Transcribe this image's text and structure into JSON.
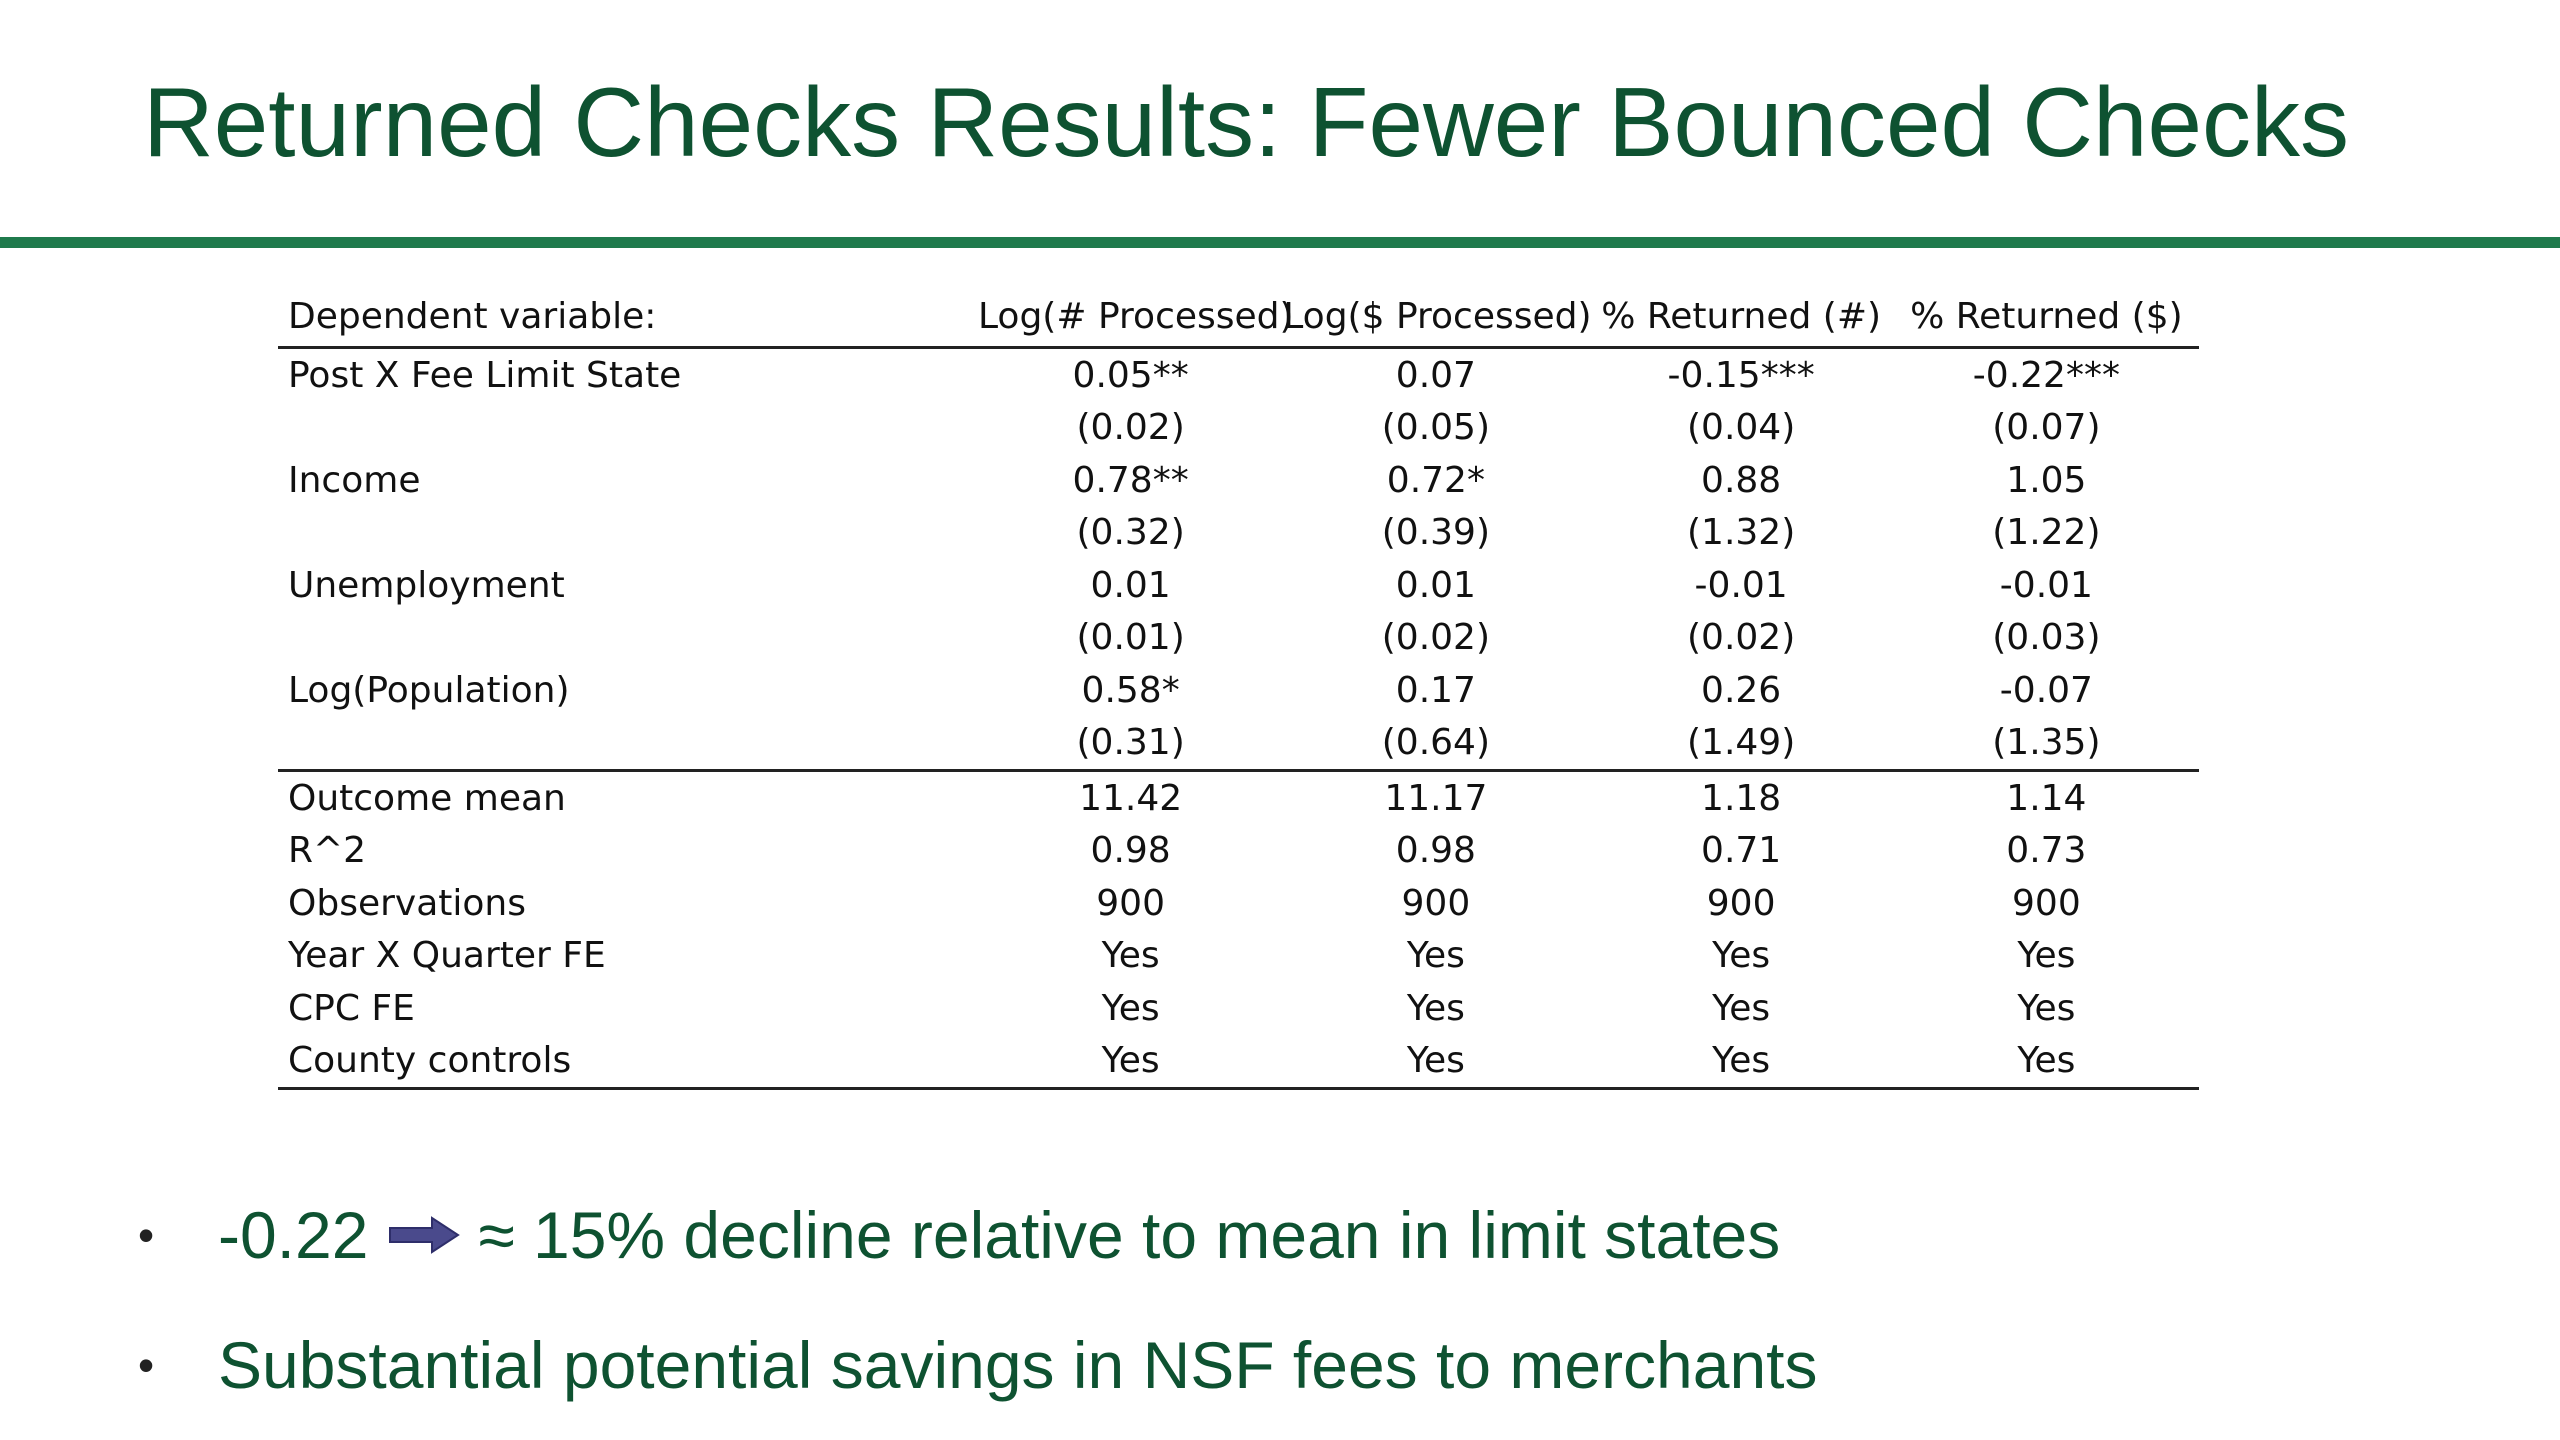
{
  "slide": {
    "title": "Returned Checks Results: Fewer Bounced Checks"
  },
  "table": {
    "header": {
      "label": "Dependent variable:",
      "columns": [
        "Log(# Processed)",
        "Log($ Processed)",
        "% Returned (#)",
        "% Returned ($)"
      ]
    },
    "rows": [
      {
        "label": "Post X Fee Limit State",
        "cells": [
          "0.05**",
          "0.07",
          "-0.15***",
          "-0.22***"
        ]
      },
      {
        "label": "",
        "cells": [
          "(0.02)",
          "(0.05)",
          "(0.04)",
          "(0.07)"
        ]
      },
      {
        "label": "Income",
        "cells": [
          "0.78**",
          "0.72*",
          "0.88",
          "1.05"
        ]
      },
      {
        "label": "",
        "cells": [
          "(0.32)",
          "(0.39)",
          "(1.32)",
          "(1.22)"
        ]
      },
      {
        "label": "Unemployment",
        "cells": [
          "0.01",
          "0.01",
          "-0.01",
          "-0.01"
        ]
      },
      {
        "label": "",
        "cells": [
          "(0.01)",
          "(0.02)",
          "(0.02)",
          "(0.03)"
        ]
      },
      {
        "label": "Log(Population)",
        "cells": [
          "0.58*",
          "0.17",
          "0.26",
          "-0.07"
        ]
      },
      {
        "label": "",
        "cells": [
          "(0.31)",
          "(0.64)",
          "(1.49)",
          "(1.35)"
        ]
      }
    ],
    "summary_rows": [
      {
        "label": "Outcome mean",
        "cells": [
          "11.42",
          "11.17",
          "1.18",
          "1.14"
        ]
      },
      {
        "label": "R^2",
        "cells": [
          "0.98",
          "0.98",
          "0.71",
          "0.73"
        ]
      },
      {
        "label": "Observations",
        "cells": [
          "900",
          "900",
          "900",
          "900"
        ]
      },
      {
        "label": "Year X Quarter FE",
        "cells": [
          "Yes",
          "Yes",
          "Yes",
          "Yes"
        ]
      },
      {
        "label": "CPC FE",
        "cells": [
          "Yes",
          "Yes",
          "Yes",
          "Yes"
        ]
      },
      {
        "label": "County controls",
        "cells": [
          "Yes",
          "Yes",
          "Yes",
          "Yes"
        ]
      }
    ]
  },
  "bullets": {
    "marker": "•",
    "first_value": "-0.22",
    "first_rest": "≈ 15% decline relative to mean in limit states",
    "second": "Substantial potential savings in NSF fees to merchants",
    "arrow_icon": "right-arrow-icon",
    "arrow_color": "#4a4a8c"
  },
  "colors": {
    "title": "#0e5231",
    "rule": "#1f7a4c"
  }
}
